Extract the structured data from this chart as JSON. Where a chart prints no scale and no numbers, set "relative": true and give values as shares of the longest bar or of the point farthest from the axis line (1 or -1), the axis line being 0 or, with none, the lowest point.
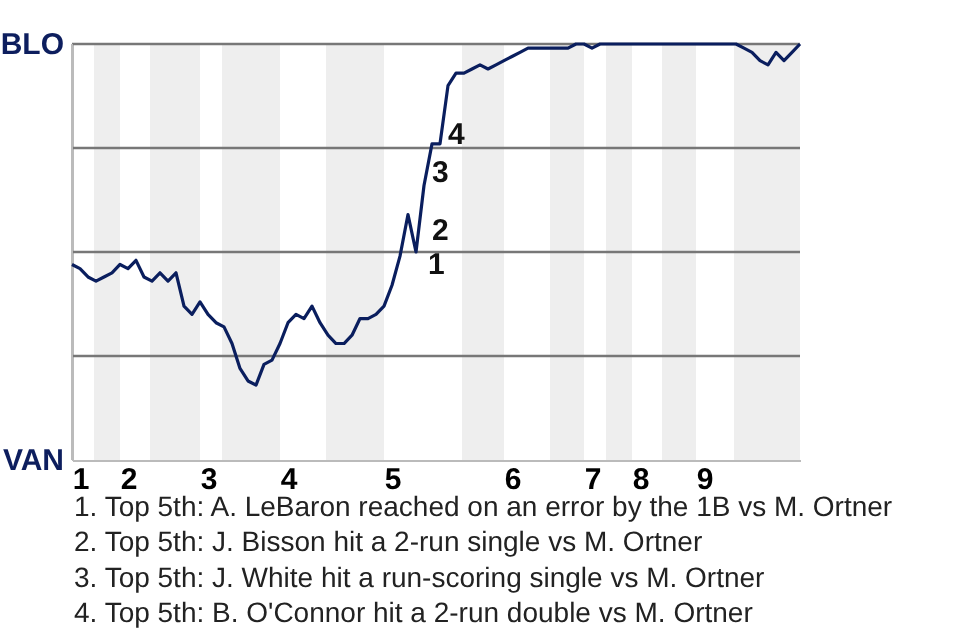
{
  "chart_data": {
    "type": "line",
    "relative": true,
    "categories": [
      null,
      "1",
      null,
      null,
      null,
      null,
      null,
      "2",
      null,
      null,
      null,
      null,
      null,
      null,
      null,
      null,
      null,
      "3",
      null,
      null,
      null,
      null,
      null,
      null,
      null,
      null,
      null,
      "4",
      null,
      null,
      null,
      null,
      null,
      null,
      null,
      null,
      null,
      null,
      null,
      null,
      "5",
      null,
      null,
      null,
      null,
      null,
      null,
      null,
      null,
      null,
      null,
      null,
      null,
      null,
      null,
      "6",
      null,
      null,
      null,
      null,
      null,
      null,
      null,
      null,
      null,
      "7",
      null,
      null,
      null,
      null,
      null,
      "8",
      null,
      null,
      null,
      null,
      null,
      null,
      null,
      "9",
      null,
      null,
      null,
      null,
      null,
      null,
      null,
      null,
      null,
      null,
      null,
      null
    ],
    "series": [
      {
        "color": "#0a1e5e",
        "values": [
          0.47,
          0.46,
          0.44,
          0.43,
          0.44,
          0.45,
          0.47,
          0.46,
          0.48,
          0.44,
          0.43,
          0.45,
          0.43,
          0.45,
          0.37,
          0.35,
          0.38,
          0.35,
          0.33,
          0.32,
          0.28,
          0.22,
          0.19,
          0.18,
          0.23,
          0.24,
          0.28,
          0.33,
          0.35,
          0.34,
          0.37,
          0.33,
          0.3,
          0.28,
          0.28,
          0.3,
          0.34,
          0.34,
          0.35,
          0.37,
          0.42,
          0.49,
          0.59,
          0.5,
          0.66,
          0.76,
          0.76,
          0.9,
          0.93,
          0.93,
          0.94,
          0.95,
          0.94,
          0.95,
          0.96,
          0.97,
          0.98,
          0.99,
          0.99,
          0.99,
          0.99,
          0.99,
          0.99,
          1,
          1,
          0.99,
          1,
          1,
          1,
          1,
          1,
          1,
          1,
          1,
          1,
          1,
          1,
          1,
          1,
          1,
          1,
          1,
          1,
          1,
          0.99,
          0.98,
          0.96,
          0.95,
          0.98,
          0.96,
          0.98,
          1
        ]
      }
    ],
    "grid": "y",
    "marker": "none",
    "line_style": "solid",
    "annotations": [
      "BLO",
      "VAN",
      "1",
      "2",
      "3",
      "4",
      "1. Top 5th: A. LeBaron reached on an error by the 1B vs M. Ortner",
      "2. Top 5th: J. Bisson hit a 2-run single vs M. Ortner",
      "3. Top 5th: J. White hit a run-scoring single vs M. Ortner",
      "4. Top 5th: B. O'Connor hit a 2-run double vs M. Ortner"
    ]
  }
}
